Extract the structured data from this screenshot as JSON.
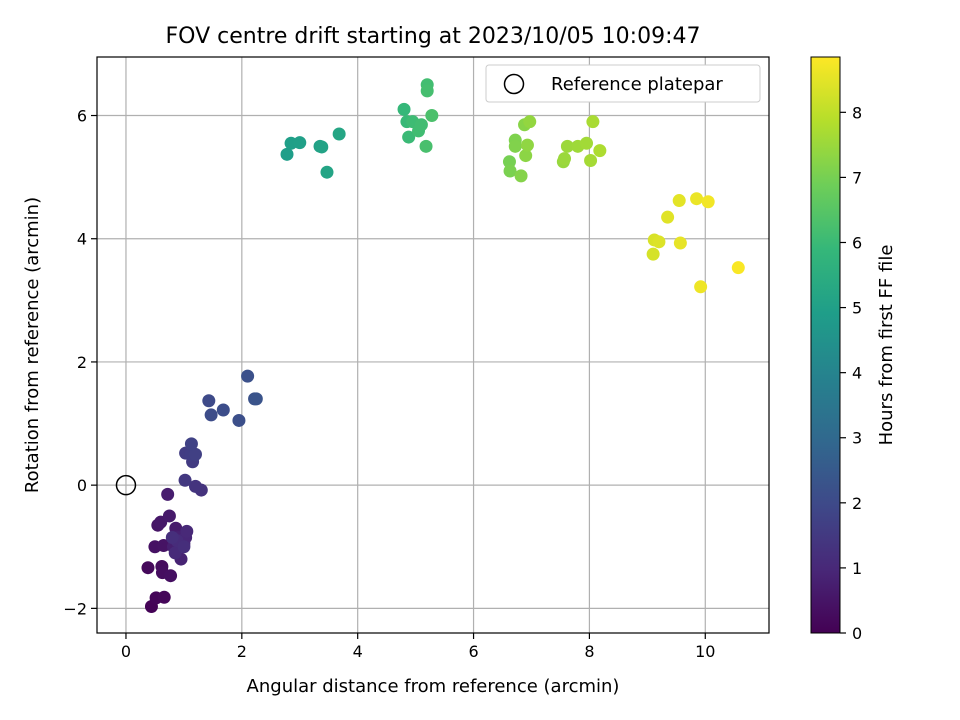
{
  "chart_data": {
    "type": "scatter",
    "title": "FOV centre drift starting at 2023/10/05 10:09:47",
    "xlabel": "Angular distance from reference (arcmin)",
    "ylabel": "Rotation from reference (arcmin)",
    "colorbar_label": "Hours from first FF file",
    "colormap": "viridis",
    "xlim": [
      -0.5,
      11.1
    ],
    "ylim": [
      -2.4,
      6.95
    ],
    "clim": [
      0,
      8.85
    ],
    "xticks": [
      0,
      2,
      4,
      6,
      8,
      10
    ],
    "yticks": [
      -2,
      0,
      2,
      4,
      6
    ],
    "colorbar_ticks": [
      0,
      1,
      2,
      3,
      4,
      5,
      6,
      7,
      8
    ],
    "grid": true,
    "legend": {
      "position": "top-right",
      "entries": [
        "Reference platepar"
      ]
    },
    "reference_point": {
      "x": 0,
      "y": 0,
      "label": "Reference platepar"
    },
    "points": [
      {
        "x": 0.44,
        "y": -1.97,
        "t": 0.05
      },
      {
        "x": 0.52,
        "y": -1.83,
        "t": 0.1
      },
      {
        "x": 0.66,
        "y": -1.82,
        "t": 0.15
      },
      {
        "x": 0.38,
        "y": -1.34,
        "t": 0.2
      },
      {
        "x": 0.62,
        "y": -1.32,
        "t": 0.25
      },
      {
        "x": 0.63,
        "y": -1.42,
        "t": 0.3
      },
      {
        "x": 0.77,
        "y": -1.47,
        "t": 0.35
      },
      {
        "x": 0.5,
        "y": -1.0,
        "t": 0.4
      },
      {
        "x": 0.65,
        "y": -0.98,
        "t": 0.45
      },
      {
        "x": 0.55,
        "y": -0.65,
        "t": 0.5
      },
      {
        "x": 0.6,
        "y": -0.6,
        "t": 0.55
      },
      {
        "x": 0.75,
        "y": -0.5,
        "t": 0.6
      },
      {
        "x": 0.86,
        "y": -0.7,
        "t": 0.65
      },
      {
        "x": 0.72,
        "y": -0.15,
        "t": 0.7
      },
      {
        "x": 0.82,
        "y": -1.0,
        "t": 0.75
      },
      {
        "x": 0.9,
        "y": -0.85,
        "t": 0.8
      },
      {
        "x": 0.95,
        "y": -1.2,
        "t": 0.85
      },
      {
        "x": 1.0,
        "y": -0.95,
        "t": 0.9
      },
      {
        "x": 1.03,
        "y": -0.85,
        "t": 0.95
      },
      {
        "x": 1.05,
        "y": -0.75,
        "t": 1.0
      },
      {
        "x": 0.85,
        "y": -1.1,
        "t": 1.05
      },
      {
        "x": 0.88,
        "y": -0.9,
        "t": 1.1
      },
      {
        "x": 1.0,
        "y": -1.0,
        "t": 1.15
      },
      {
        "x": 0.8,
        "y": -0.85,
        "t": 1.2
      },
      {
        "x": 1.3,
        "y": -0.08,
        "t": 1.3
      },
      {
        "x": 1.2,
        "y": -0.02,
        "t": 1.35
      },
      {
        "x": 1.02,
        "y": 0.08,
        "t": 1.45
      },
      {
        "x": 1.15,
        "y": 0.38,
        "t": 1.55
      },
      {
        "x": 1.03,
        "y": 0.52,
        "t": 1.6
      },
      {
        "x": 1.12,
        "y": 0.5,
        "t": 1.65
      },
      {
        "x": 1.2,
        "y": 0.5,
        "t": 1.7
      },
      {
        "x": 1.13,
        "y": 0.67,
        "t": 1.75
      },
      {
        "x": 1.43,
        "y": 1.37,
        "t": 2.0
      },
      {
        "x": 1.47,
        "y": 1.14,
        "t": 2.05
      },
      {
        "x": 1.68,
        "y": 1.22,
        "t": 2.1
      },
      {
        "x": 1.95,
        "y": 1.05,
        "t": 2.15
      },
      {
        "x": 2.1,
        "y": 1.77,
        "t": 2.2
      },
      {
        "x": 2.22,
        "y": 1.4,
        "t": 2.25
      },
      {
        "x": 2.25,
        "y": 1.4,
        "t": 2.3
      },
      {
        "x": 2.78,
        "y": 5.37,
        "t": 4.9
      },
      {
        "x": 2.85,
        "y": 5.55,
        "t": 4.95
      },
      {
        "x": 3.0,
        "y": 5.56,
        "t": 5.0
      },
      {
        "x": 3.35,
        "y": 5.5,
        "t": 5.05
      },
      {
        "x": 3.38,
        "y": 5.49,
        "t": 5.1
      },
      {
        "x": 3.47,
        "y": 5.08,
        "t": 5.15
      },
      {
        "x": 3.68,
        "y": 5.7,
        "t": 5.2
      },
      {
        "x": 4.8,
        "y": 6.1,
        "t": 5.9
      },
      {
        "x": 4.85,
        "y": 5.9,
        "t": 5.95
      },
      {
        "x": 4.88,
        "y": 5.65,
        "t": 6.0
      },
      {
        "x": 4.95,
        "y": 5.9,
        "t": 6.05
      },
      {
        "x": 5.05,
        "y": 5.75,
        "t": 6.1
      },
      {
        "x": 5.1,
        "y": 5.85,
        "t": 6.12
      },
      {
        "x": 5.2,
        "y": 6.5,
        "t": 6.15
      },
      {
        "x": 5.2,
        "y": 6.4,
        "t": 6.2
      },
      {
        "x": 5.18,
        "y": 5.5,
        "t": 6.25
      },
      {
        "x": 5.28,
        "y": 6.0,
        "t": 6.3
      },
      {
        "x": 6.62,
        "y": 5.25,
        "t": 7.0
      },
      {
        "x": 6.63,
        "y": 5.1,
        "t": 7.05
      },
      {
        "x": 6.72,
        "y": 5.6,
        "t": 7.1
      },
      {
        "x": 6.72,
        "y": 5.5,
        "t": 7.15
      },
      {
        "x": 6.82,
        "y": 5.02,
        "t": 7.2
      },
      {
        "x": 6.88,
        "y": 5.85,
        "t": 7.25
      },
      {
        "x": 6.9,
        "y": 5.35,
        "t": 7.3
      },
      {
        "x": 6.93,
        "y": 5.52,
        "t": 7.35
      },
      {
        "x": 6.97,
        "y": 5.9,
        "t": 7.4
      },
      {
        "x": 7.55,
        "y": 5.25,
        "t": 7.45
      },
      {
        "x": 7.57,
        "y": 5.3,
        "t": 7.5
      },
      {
        "x": 7.62,
        "y": 5.5,
        "t": 7.52
      },
      {
        "x": 7.8,
        "y": 5.5,
        "t": 7.55
      },
      {
        "x": 7.95,
        "y": 5.55,
        "t": 7.6
      },
      {
        "x": 8.02,
        "y": 5.27,
        "t": 7.65
      },
      {
        "x": 8.06,
        "y": 5.9,
        "t": 7.7
      },
      {
        "x": 8.18,
        "y": 5.43,
        "t": 7.75
      },
      {
        "x": 9.1,
        "y": 3.75,
        "t": 8.3
      },
      {
        "x": 9.12,
        "y": 3.98,
        "t": 8.35
      },
      {
        "x": 9.2,
        "y": 3.95,
        "t": 8.4
      },
      {
        "x": 9.35,
        "y": 4.35,
        "t": 8.45
      },
      {
        "x": 9.55,
        "y": 4.62,
        "t": 8.5
      },
      {
        "x": 9.57,
        "y": 3.93,
        "t": 8.55
      },
      {
        "x": 9.85,
        "y": 4.65,
        "t": 8.6
      },
      {
        "x": 9.92,
        "y": 3.22,
        "t": 8.65
      },
      {
        "x": 10.05,
        "y": 4.6,
        "t": 8.7
      },
      {
        "x": 10.57,
        "y": 3.53,
        "t": 8.8
      }
    ]
  },
  "colors": {
    "reference_marker": "#000000",
    "grid": "#b0b0b0",
    "viridis_stops": [
      "#440154",
      "#482878",
      "#3e4989",
      "#31688e",
      "#26828e",
      "#1f9e89",
      "#35b779",
      "#6ece58",
      "#b5de2b",
      "#fde725"
    ]
  }
}
